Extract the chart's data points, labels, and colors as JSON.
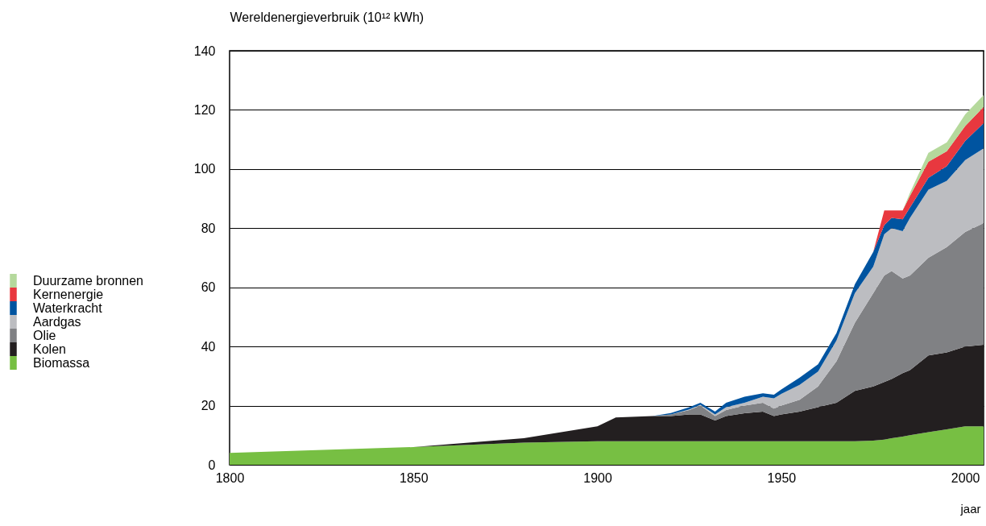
{
  "chart_data": {
    "type": "area",
    "stacked": true,
    "ylabel": "Wereldenergieverbruik (10¹² kWh)",
    "xlabel": "jaar",
    "x": [
      1800,
      1850,
      1880,
      1900,
      1905,
      1915,
      1920,
      1925,
      1928,
      1932,
      1935,
      1940,
      1945,
      1948,
      1950,
      1955,
      1960,
      1965,
      1970,
      1975,
      1978,
      1980,
      1983,
      1985,
      1990,
      1995,
      2000,
      2005
    ],
    "series": [
      {
        "name": "Biomassa",
        "color": "#77bf43",
        "values": [
          4,
          6,
          7.5,
          8,
          8,
          8,
          8,
          8,
          8,
          8,
          8,
          8,
          8,
          8,
          8,
          8,
          8,
          8,
          8,
          8.2,
          8.5,
          9,
          9.5,
          10,
          11,
          12,
          13,
          13
        ]
      },
      {
        "name": "Kolen",
        "color": "#231f20",
        "values": [
          0,
          0,
          1.5,
          5,
          8,
          8.5,
          8.5,
          9,
          9,
          7,
          8.5,
          9.4,
          10,
          8.5,
          9,
          10,
          11.5,
          13,
          17,
          18.3,
          19.5,
          20,
          21.5,
          22,
          26,
          26,
          27,
          27.6
        ]
      },
      {
        "name": "Olie",
        "color": "#808184",
        "values": [
          0,
          0,
          0,
          0,
          0,
          0,
          0.5,
          1.5,
          3,
          1.5,
          2,
          2.6,
          3,
          2.5,
          3,
          4,
          7,
          14,
          23,
          31.5,
          36,
          36.5,
          32,
          32,
          33,
          35.6,
          38.7,
          41.1
        ]
      },
      {
        "name": "Aardgas",
        "color": "#bcbdc1",
        "values": [
          0,
          0,
          0,
          0,
          0,
          0,
          0,
          0.2,
          0.3,
          0.5,
          1,
          1,
          2,
          3.5,
          4,
          5,
          5,
          7,
          10,
          9,
          14,
          14.5,
          16,
          19.5,
          23,
          22.4,
          24.3,
          25.3
        ]
      },
      {
        "name": "Waterkracht",
        "color": "#0054a0",
        "values": [
          0,
          0,
          0,
          0,
          0,
          0,
          0.5,
          0.8,
          0.7,
          1,
          1.5,
          2,
          1.2,
          1.2,
          1.5,
          2.5,
          2.5,
          2.5,
          3,
          5,
          3,
          3.5,
          4,
          3.5,
          4,
          5,
          6.5,
          8.5
        ]
      },
      {
        "name": "Kernenergie",
        "color": "#e8383f",
        "values": [
          0,
          0,
          0,
          0,
          0,
          0,
          0,
          0,
          0,
          0,
          0,
          0,
          0,
          0,
          0,
          0,
          0,
          0,
          0,
          0,
          5,
          2.5,
          3,
          4,
          5.5,
          5,
          5,
          5.5
        ]
      },
      {
        "name": "Duurzame bronnen",
        "color": "#b5d99c",
        "values": [
          0,
          0,
          0,
          0,
          0,
          0,
          0,
          0,
          0,
          0,
          0,
          0,
          0,
          0,
          0,
          0,
          0,
          0,
          0,
          0,
          0,
          0,
          0,
          1,
          3,
          3,
          4,
          4
        ]
      }
    ],
    "xlim": [
      1800,
      2005
    ],
    "xticks": [
      1800,
      1850,
      1900,
      1950,
      2000
    ],
    "ylim": [
      0,
      140
    ],
    "yticks": [
      0,
      20,
      40,
      60,
      80,
      100,
      120,
      140
    ],
    "grid": "y",
    "legend": "left"
  }
}
